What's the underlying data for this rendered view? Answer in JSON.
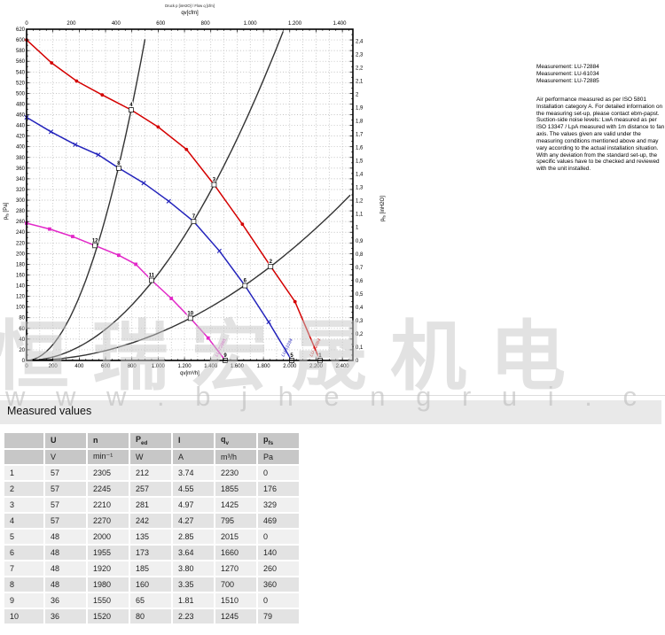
{
  "chart": {
    "title_small": "Druck p [inH2O] / Flow q [cfm]",
    "top_axis": {
      "label": "qv[cfm]",
      "min": 0,
      "max": 1400,
      "step": 200
    },
    "bottom_axis": {
      "label": "qv[m³/h]",
      "min": 0,
      "max": 2400,
      "step": 200
    },
    "left_axis": {
      "label_main": "p",
      "label_sub": "fs",
      "label_unit": " [Pa]",
      "min": 0,
      "max": 620,
      "step": 20
    },
    "right_axis": {
      "label_main": "p",
      "label_sub": "fs",
      "label_unit": " [inH2O]",
      "min": 0,
      "max": 2.4,
      "step": 0.1
    }
  },
  "chart_data": {
    "type": "line",
    "title": "Air performance curves",
    "xlabel": "qv[m³/h]",
    "ylabel": "pfs [Pa]",
    "xlim": [
      0,
      2480
    ],
    "ylim": [
      0,
      620
    ],
    "grid": "dotted",
    "series": [
      {
        "name": "57 V",
        "measurement": "LU-72884",
        "color": "#d40000",
        "marker": "circle",
        "points": [
          [
            0,
            600
          ],
          [
            190,
            557
          ],
          [
            380,
            523
          ],
          [
            575,
            497
          ],
          [
            795,
            469
          ],
          [
            1000,
            437
          ],
          [
            1215,
            395
          ],
          [
            1425,
            329
          ],
          [
            1640,
            255
          ],
          [
            1855,
            176
          ],
          [
            2040,
            110
          ],
          [
            2230,
            0
          ]
        ]
      },
      {
        "name": "48 V",
        "measurement": "LU-61034",
        "color": "#2222bb",
        "marker": "cross",
        "points": [
          [
            0,
            455
          ],
          [
            185,
            428
          ],
          [
            370,
            404
          ],
          [
            545,
            385
          ],
          [
            700,
            360
          ],
          [
            890,
            332
          ],
          [
            1080,
            298
          ],
          [
            1270,
            260
          ],
          [
            1465,
            205
          ],
          [
            1660,
            140
          ],
          [
            1840,
            72
          ],
          [
            2015,
            0
          ]
        ]
      },
      {
        "name": "36 V",
        "measurement": "LU-72885",
        "color": "#e228c8",
        "marker": "square",
        "points": [
          [
            0,
            257
          ],
          [
            175,
            246
          ],
          [
            350,
            232
          ],
          [
            520,
            215
          ],
          [
            700,
            197
          ],
          [
            830,
            180
          ],
          [
            950,
            150
          ],
          [
            1100,
            116
          ],
          [
            1245,
            79
          ],
          [
            1380,
            42
          ],
          [
            1510,
            0
          ]
        ]
      }
    ],
    "system_curves": [
      {
        "through_q": 795,
        "through_p": 469
      },
      {
        "through_q": 1425,
        "through_p": 329
      },
      {
        "through_q": 1855,
        "through_p": 176
      }
    ],
    "operating_points": [
      {
        "n": "1",
        "q": 2230,
        "p": 0
      },
      {
        "n": "2",
        "q": 1855,
        "p": 176
      },
      {
        "n": "3",
        "q": 1425,
        "p": 329
      },
      {
        "n": "4",
        "q": 795,
        "p": 469
      },
      {
        "n": "5",
        "q": 2015,
        "p": 0
      },
      {
        "n": "6",
        "q": 1660,
        "p": 140
      },
      {
        "n": "7",
        "q": 1270,
        "p": 260
      },
      {
        "n": "8",
        "q": 700,
        "p": 360
      },
      {
        "n": "9",
        "q": 1510,
        "p": 0
      },
      {
        "n": "10",
        "q": 1245,
        "p": 79
      },
      {
        "n": "11",
        "q": 950,
        "p": 150
      },
      {
        "n": "12",
        "q": 520,
        "p": 215
      }
    ]
  },
  "notes": {
    "measurements": [
      "Measurement: LU-72884",
      "Measurement: LU-61034",
      "Measurement: LU-72885"
    ],
    "paragraph": "Air performance measured as per ISO 5801 Installation category A. For detailed information on the measuring set-up, please contact ebm-papst. Suction-side noise levels: LwA measured as per ISO 13347 / LpA measured with 1m distance to fan axis. The values given are valid under the measuring conditions mentioned above and may vary according to the actual installation situation. With any deviation from the standard set-up, the specific values have to be checked and reviewed with the unit installed."
  },
  "watermark": {
    "cjk": "恒瑞宏晟机电",
    "url": "w w w . b j h e n g r u i . c n"
  },
  "section": {
    "title": "Measured values"
  },
  "table": {
    "headers": [
      {
        "t": ""
      },
      {
        "t": "U"
      },
      {
        "t": "n"
      },
      {
        "t": "P",
        "sub": "ed"
      },
      {
        "t": "I"
      },
      {
        "t": "q",
        "sub": "v"
      },
      {
        "t": "p",
        "sub": "fs"
      }
    ],
    "units": [
      "",
      "V",
      "min⁻¹",
      "W",
      "A",
      "m³/h",
      "Pa"
    ],
    "rows": [
      [
        "1",
        "57",
        "2305",
        "212",
        "3.74",
        "2230",
        "0"
      ],
      [
        "2",
        "57",
        "2245",
        "257",
        "4.55",
        "1855",
        "176"
      ],
      [
        "3",
        "57",
        "2210",
        "281",
        "4.97",
        "1425",
        "329"
      ],
      [
        "4",
        "57",
        "2270",
        "242",
        "4.27",
        "795",
        "469"
      ],
      [
        "5",
        "48",
        "2000",
        "135",
        "2.85",
        "2015",
        "0"
      ],
      [
        "6",
        "48",
        "1955",
        "173",
        "3.64",
        "1660",
        "140"
      ],
      [
        "7",
        "48",
        "1920",
        "185",
        "3.80",
        "1270",
        "260"
      ],
      [
        "8",
        "48",
        "1980",
        "160",
        "3.35",
        "700",
        "360"
      ],
      [
        "9",
        "36",
        "1550",
        "65",
        "1.81",
        "1510",
        "0"
      ],
      [
        "10",
        "36",
        "1520",
        "80",
        "2.23",
        "1245",
        "79"
      ]
    ]
  }
}
